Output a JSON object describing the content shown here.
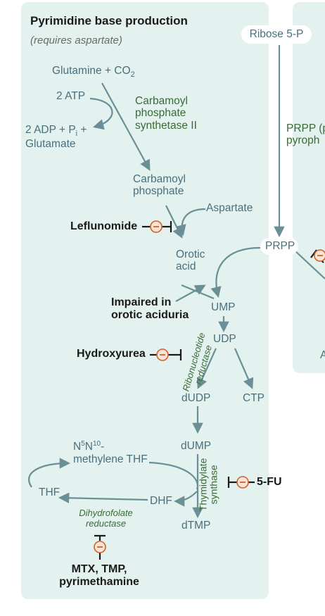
{
  "panel": {
    "title": "Pyrimidine base production",
    "subtitle": "(requires aspartate)"
  },
  "molecules": {
    "glutamine_co2": "Glutamine + CO",
    "glutamine_co2_sub": "2",
    "atp": "2 ATP",
    "adp_line1": "2 ADP + P",
    "adp_sub": "i",
    "adp_plus": " +",
    "adp_line2": "Glutamate",
    "carbamoyl_phosphate_1": "Carbamoyl",
    "carbamoyl_phosphate_2": "phosphate",
    "aspartate": "Aspartate",
    "orotic_acid_1": "Orotic",
    "orotic_acid_2": "acid",
    "ribose5p": "Ribose 5-P",
    "prpp": "PRPP",
    "ump": "UMP",
    "udp": "UDP",
    "dudp": "dUDP",
    "ctp": "CTP",
    "dump": "dUMP",
    "dtmp": "dTMP",
    "methylene_thf_1_a": "N",
    "methylene_thf_1_sup1": "5",
    "methylene_thf_1_b": "N",
    "methylene_thf_1_sup2": "10",
    "methylene_thf_1_c": "-",
    "methylene_thf_2": "methylene THF",
    "thf": "THF",
    "dhf": "DHF"
  },
  "enzymes": {
    "cps2_1": "Carbamoyl",
    "cps2_2": "phosphate",
    "cps2_3": "synthetase II",
    "rnr_1": "Ribonucleotide",
    "rnr_2": "reductase",
    "ts_1": "Thymidylate",
    "ts_2": "synthase",
    "dhfr_1": "Dihydrofolate",
    "dhfr_2": "reductase"
  },
  "drugs": {
    "leflunomide": "Leflunomide",
    "hydroxyurea": "Hydroxyurea",
    "five_fu": "5-FU",
    "mtx_1": "MTX, TMP,",
    "mtx_2": "pyrimethamine"
  },
  "notes": {
    "orotic_aciduria_1": "Impaired in",
    "orotic_aciduria_2": "orotic aciduria"
  },
  "right_panel": {
    "prpp_text_1": "PRPP (p",
    "prpp_text_2": "pyroph",
    "partial_a": "A"
  },
  "colors": {
    "panel_bg": "#e3f1ef",
    "arrow": "#6b8f97",
    "inhibitor": "#d0602e",
    "enzyme_text": "#3a6b35",
    "molecule_text": "#4a6f7d"
  },
  "icons": {
    "inhibition": "minus-circle-icon"
  }
}
